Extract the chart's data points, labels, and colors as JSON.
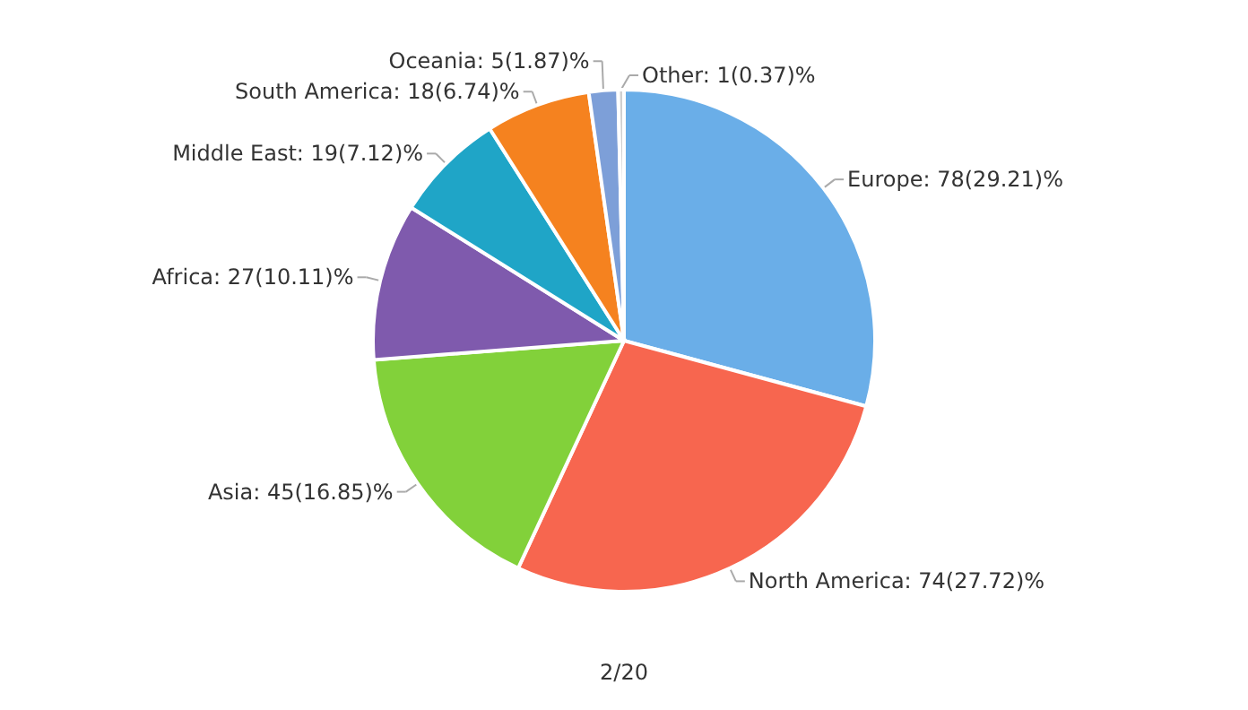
{
  "chart_data": {
    "type": "pie",
    "categories": [
      "Europe",
      "North America",
      "Asia",
      "Africa",
      "Middle East",
      "South America",
      "Oceania",
      "Other"
    ],
    "values": [
      78,
      74,
      45,
      27,
      19,
      18,
      5,
      1
    ],
    "colors": [
      "#6aaee8",
      "#f7664f",
      "#82d13a",
      "#7f5aad",
      "#1fa5c7",
      "#f5821f",
      "#7d9fd8",
      "#d0d0d0"
    ],
    "value_labels": [
      "78(29.21)%",
      "74(27.72)%",
      "45(16.85)%",
      "27(10.11)%",
      "19(7.12)%",
      "18(6.74)%",
      "5(1.87)%",
      "1(0.37)%"
    ],
    "annotations": [
      "2/20"
    ]
  }
}
